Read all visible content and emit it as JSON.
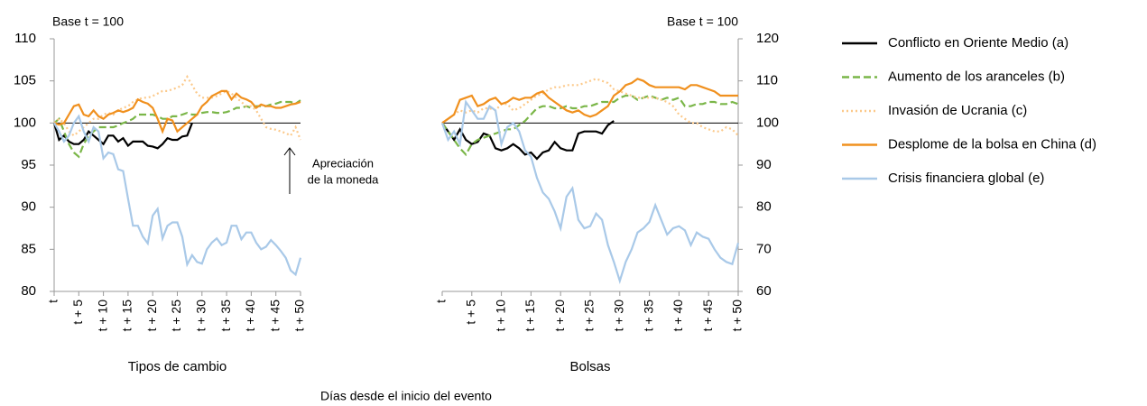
{
  "chart_data": [
    {
      "type": "line",
      "subtitle": "Base t = 100",
      "x_label": "Tipos de cambio",
      "yaxis_side": "left",
      "ylim": [
        80,
        110
      ],
      "yticks": [
        80,
        85,
        90,
        95,
        100,
        105,
        110
      ],
      "xlim": [
        0,
        50
      ],
      "xticks": [
        {
          "value": 0,
          "label": "t"
        },
        {
          "value": 5,
          "label": "t + 5"
        },
        {
          "value": 10,
          "label": "t + 10"
        },
        {
          "value": 15,
          "label": "t + 15"
        },
        {
          "value": 20,
          "label": "t + 20"
        },
        {
          "value": 25,
          "label": "t + 25"
        },
        {
          "value": 30,
          "label": "t + 30"
        },
        {
          "value": 35,
          "label": "t + 35"
        },
        {
          "value": 40,
          "label": "t + 40"
        },
        {
          "value": 45,
          "label": "t + 45"
        },
        {
          "value": 50,
          "label": "t + 50"
        }
      ],
      "reference_line": 100,
      "annotation": [
        "Apreciación",
        "de la moneda"
      ],
      "x": [
        0,
        1,
        2,
        3,
        4,
        5,
        6,
        7,
        8,
        9,
        10,
        11,
        12,
        13,
        14,
        15,
        16,
        17,
        18,
        19,
        20,
        21,
        22,
        23,
        24,
        25,
        26,
        27,
        28,
        29,
        30,
        31,
        32,
        33,
        34,
        35,
        36,
        37,
        38,
        39,
        40,
        41,
        42,
        43,
        44,
        45,
        46,
        47,
        48,
        49,
        50
      ],
      "series": [
        {
          "name": "Conflicto en Oriente Medio (a)",
          "color": "#000000",
          "dash": "solid",
          "values": [
            100,
            98,
            98.5,
            97.8,
            97.5,
            97.5,
            98,
            99,
            98.5,
            98,
            97.5,
            98.5,
            98.5,
            97.8,
            98.2,
            97.3,
            97.8,
            97.8,
            97.8,
            97.3,
            97.2,
            97.0,
            97.5,
            98.2,
            98,
            98,
            98.4,
            98.5,
            100,
            null,
            null,
            null,
            null,
            null,
            null,
            null,
            null,
            null,
            null,
            null,
            null,
            null,
            null,
            null,
            null,
            null,
            null,
            null,
            null,
            null,
            null
          ]
        },
        {
          "name": "Aumento de los aranceles (b)",
          "color": "#7ab648",
          "dash": "dashed",
          "values": [
            100,
            100.5,
            99,
            97.5,
            96.5,
            96,
            97.5,
            98.5,
            99,
            99.5,
            99.5,
            99.5,
            99.5,
            99.7,
            100,
            100.2,
            100.5,
            101,
            101,
            101,
            101,
            100.8,
            100.5,
            100.5,
            100.8,
            100.8,
            101,
            101.2,
            101,
            101,
            101.2,
            101.3,
            101.3,
            101.2,
            101.2,
            101.3,
            101.5,
            101.8,
            101.8,
            102,
            101.8,
            102,
            102,
            102,
            102.2,
            102.3,
            102.5,
            102.5,
            102.5,
            102.3,
            102.7
          ]
        },
        {
          "name": "Invasión de Ucrania (c)",
          "color": "#fcc98a",
          "dash": "dotted",
          "values": [
            100,
            100.5,
            100,
            99,
            98.5,
            99,
            99.5,
            100,
            100.5,
            100.5,
            101,
            101.2,
            101,
            101.5,
            101.8,
            102,
            102.5,
            102.8,
            103,
            103,
            103.2,
            103.5,
            103.8,
            103.8,
            104,
            104.2,
            104.5,
            105.5,
            104.5,
            103.5,
            103,
            103,
            103,
            103.2,
            103.5,
            103.8,
            103.5,
            103,
            102.5,
            102,
            102,
            101.5,
            100.5,
            99.5,
            99.3,
            99.2,
            99,
            98.8,
            98.5,
            99.5,
            98
          ]
        },
        {
          "name": "Desplome de la bolsa en China (d)",
          "color": "#f0901e",
          "dash": "solid",
          "values": [
            100,
            99.8,
            100,
            101,
            102,
            102.2,
            101,
            100.8,
            101.5,
            100.8,
            100.5,
            101,
            101.2,
            101.5,
            101.3,
            101.5,
            101.8,
            102.8,
            102.5,
            102.3,
            101.8,
            100.5,
            99,
            100.5,
            100.3,
            99,
            99.5,
            100,
            100.5,
            101,
            102,
            102.5,
            103.2,
            103.5,
            103.8,
            103.8,
            102.8,
            103.5,
            103,
            102.8,
            102.5,
            101.8,
            102.2,
            102,
            102,
            101.8,
            101.8,
            102,
            102.2,
            102.3,
            102.5
          ]
        },
        {
          "name": "Crisis financiera global (e)",
          "color": "#a9c9e8",
          "dash": "solid",
          "values": [
            100,
            99,
            97.8,
            98.5,
            100,
            100.8,
            99,
            97.8,
            99.5,
            99,
            95.8,
            96.5,
            96.3,
            94.5,
            94.3,
            91,
            87.8,
            87.8,
            86.5,
            85.7,
            89,
            89.8,
            86.3,
            87.8,
            88.2,
            88.2,
            86.5,
            83.2,
            84.3,
            83.5,
            83.3,
            85,
            85.8,
            86.3,
            85.5,
            85.8,
            87.8,
            87.8,
            86.2,
            87,
            87,
            85.8,
            85,
            85.3,
            86.1,
            85.5,
            84.8,
            84,
            82.5,
            82,
            84
          ]
        }
      ]
    },
    {
      "type": "line",
      "subtitle": "Base t = 100",
      "x_label": "Bolsas",
      "yaxis_side": "right",
      "ylim": [
        60,
        120
      ],
      "yticks": [
        60,
        70,
        80,
        90,
        100,
        110,
        120
      ],
      "xlim": [
        0,
        50
      ],
      "xticks": [
        {
          "value": 0,
          "label": "t"
        },
        {
          "value": 5,
          "label": "t + 5"
        },
        {
          "value": 10,
          "label": "t + 10"
        },
        {
          "value": 15,
          "label": "t + 15"
        },
        {
          "value": 20,
          "label": "t + 20"
        },
        {
          "value": 25,
          "label": "t + 25"
        },
        {
          "value": 30,
          "label": "t + 30"
        },
        {
          "value": 35,
          "label": "t + 35"
        },
        {
          "value": 40,
          "label": "t + 40"
        },
        {
          "value": 45,
          "label": "t + 45"
        },
        {
          "value": 50,
          "label": "t + 50"
        }
      ],
      "reference_line": 100,
      "x": [
        0,
        1,
        2,
        3,
        4,
        5,
        6,
        7,
        8,
        9,
        10,
        11,
        12,
        13,
        14,
        15,
        16,
        17,
        18,
        19,
        20,
        21,
        22,
        23,
        24,
        25,
        26,
        27,
        28,
        29,
        30,
        31,
        32,
        33,
        34,
        35,
        36,
        37,
        38,
        39,
        40,
        41,
        42,
        43,
        44,
        45,
        46,
        47,
        48,
        49,
        50
      ],
      "series": [
        {
          "name": "Conflicto en Oriente Medio (a)",
          "color": "#000000",
          "dash": "solid",
          "values": [
            100,
            98,
            96,
            98.5,
            96,
            95,
            95.5,
            97.5,
            97,
            94,
            93.5,
            94,
            95,
            94,
            92.5,
            93,
            91.5,
            93,
            93.5,
            95.5,
            94,
            93.5,
            93.5,
            97.5,
            98,
            98,
            98,
            97.5,
            99.5,
            100.5,
            null,
            null,
            null,
            null,
            null,
            null,
            null,
            null,
            null,
            null,
            null,
            null,
            null,
            null,
            null,
            null,
            null,
            null,
            null,
            null,
            null
          ]
        },
        {
          "name": "Aumento de los aranceles (b)",
          "color": "#7ab648",
          "dash": "dashed",
          "values": [
            100,
            98,
            96,
            94,
            92.5,
            95,
            96,
            96.5,
            97,
            97.5,
            98,
            98.5,
            98.5,
            99.5,
            100.5,
            102,
            103.5,
            104,
            104,
            103.5,
            103.5,
            104,
            103.5,
            103.5,
            104,
            104,
            104.5,
            105,
            105,
            105,
            106,
            106.5,
            106.5,
            105.5,
            106,
            106.5,
            106,
            105.5,
            106,
            105.5,
            106,
            104,
            104,
            104.5,
            104.5,
            105,
            105,
            104.5,
            104.5,
            105,
            104.5
          ]
        },
        {
          "name": "Invasión de Ucrania (c)",
          "color": "#fcc98a",
          "dash": "dotted",
          "values": [
            100,
            101,
            102,
            103,
            102.5,
            103,
            102.5,
            103.5,
            103.5,
            103,
            104.5,
            104.5,
            103,
            103.5,
            104.5,
            105.5,
            106.5,
            107,
            108,
            108.5,
            108.5,
            109,
            109,
            109,
            109.5,
            110,
            110.5,
            110,
            109.5,
            108,
            107.5,
            107,
            106.5,
            106,
            106,
            106,
            106,
            105.5,
            105,
            104,
            102,
            101,
            100,
            100,
            99,
            98.5,
            98,
            98,
            99,
            98.5,
            97
          ]
        },
        {
          "name": "Desplome de la bolsa en China (d)",
          "color": "#f0901e",
          "dash": "solid",
          "values": [
            100,
            101,
            102,
            105.5,
            106,
            106.5,
            104,
            104.5,
            105.5,
            106,
            104.5,
            105,
            106,
            105.5,
            106,
            106,
            107,
            107.5,
            106,
            105,
            104,
            103,
            102.5,
            103,
            102,
            101.5,
            102,
            103,
            104,
            106.5,
            107.5,
            109,
            109.5,
            110.5,
            110,
            109,
            108.5,
            108.5,
            108.5,
            108.5,
            108.5,
            108,
            109,
            109,
            108.5,
            108,
            107.5,
            106.5,
            106.5,
            106.5,
            106.5
          ]
        },
        {
          "name": "Crisis financiera global (e)",
          "color": "#a9c9e8",
          "dash": "solid",
          "values": [
            100,
            96,
            98,
            95,
            105,
            103,
            101,
            101,
            104,
            103,
            95,
            99,
            100,
            98,
            93.5,
            92,
            87,
            83.5,
            82,
            79,
            75,
            82.5,
            84.5,
            77,
            75,
            75.5,
            78.5,
            77,
            71,
            67,
            62.5,
            67,
            70,
            74,
            75,
            76.5,
            80.5,
            77,
            73.5,
            75,
            75.5,
            74.5,
            71,
            74,
            73,
            72.5,
            70,
            68,
            67,
            66.5,
            71.5
          ]
        }
      ]
    }
  ],
  "x_label": "Días desde el inicio del evento"
}
